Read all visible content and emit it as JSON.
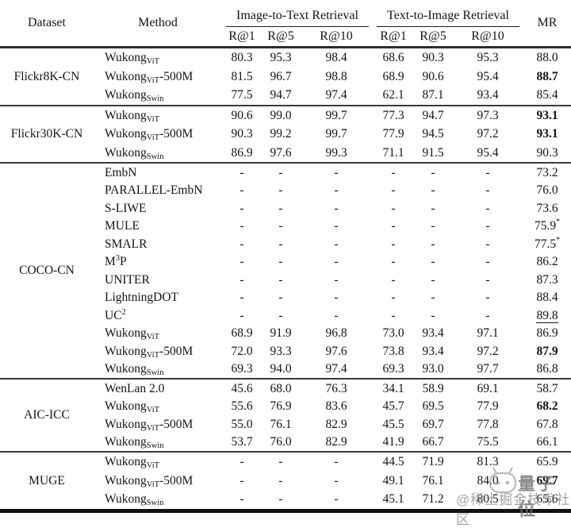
{
  "table": {
    "header": {
      "dataset": "Dataset",
      "method": "Method",
      "group1": "Image-to-Text Retrieval",
      "group2": "Text-to-Image Retrieval",
      "mr": "MR",
      "subcols": [
        "R@1",
        "R@5",
        "R@10",
        "R@1",
        "R@5",
        "R@10"
      ]
    },
    "groups": [
      {
        "dataset": "Flickr8K-CN",
        "tall": true,
        "rows": [
          {
            "method": {
              "base": "Wukong",
              "sub": "ViT"
            },
            "cells": [
              "80.3",
              "95.3",
              "98.4",
              "68.6",
              "90.3",
              "95.3"
            ],
            "mr": {
              "value": "88.0"
            }
          },
          {
            "method": {
              "base": "Wukong",
              "sub": "ViT",
              "suffix": "-500M"
            },
            "cells": [
              "81.5",
              "96.7",
              "98.8",
              "68.9",
              "90.6",
              "95.4"
            ],
            "mr": {
              "value": "88.7",
              "bold": true
            }
          },
          {
            "method": {
              "base": "Wukong",
              "sub": "Swin"
            },
            "cells": [
              "77.5",
              "94.7",
              "97.4",
              "62.1",
              "87.1",
              "93.4"
            ],
            "mr": {
              "value": "85.4"
            }
          }
        ]
      },
      {
        "dataset": "Flickr30K-CN",
        "tall": true,
        "rows": [
          {
            "method": {
              "base": "Wukong",
              "sub": "ViT"
            },
            "cells": [
              "90.6",
              "99.0",
              "99.7",
              "77.3",
              "94.7",
              "97.3"
            ],
            "mr": {
              "value": "93.1",
              "bold": true
            }
          },
          {
            "method": {
              "base": "Wukong",
              "sub": "ViT",
              "suffix": "-500M"
            },
            "cells": [
              "90.3",
              "99.2",
              "99.7",
              "77.9",
              "94.5",
              "97.2"
            ],
            "mr": {
              "value": "93.1",
              "bold": true
            }
          },
          {
            "method": {
              "base": "Wukong",
              "sub": "Swin"
            },
            "cells": [
              "86.9",
              "97.6",
              "99.3",
              "71.1",
              "91.5",
              "95.4"
            ],
            "mr": {
              "value": "90.3"
            }
          }
        ]
      },
      {
        "dataset": "COCO-CN",
        "tall": false,
        "rows": [
          {
            "method": {
              "base": "EmbN"
            },
            "cells": [
              "-",
              "-",
              "-",
              "-",
              "-",
              "-"
            ],
            "mr": {
              "value": "73.2"
            }
          },
          {
            "method": {
              "base": "PARALLEL-EmbN"
            },
            "cells": [
              "-",
              "-",
              "-",
              "-",
              "-",
              "-"
            ],
            "mr": {
              "value": "76.0"
            }
          },
          {
            "method": {
              "base": "S-LIWE"
            },
            "cells": [
              "-",
              "-",
              "-",
              "-",
              "-",
              "-"
            ],
            "mr": {
              "value": "73.6"
            }
          },
          {
            "method": {
              "base": "MULE"
            },
            "cells": [
              "-",
              "-",
              "-",
              "-",
              "-",
              "-"
            ],
            "mr": {
              "value": "75.9",
              "star": true
            }
          },
          {
            "method": {
              "base": "SMALR"
            },
            "cells": [
              "-",
              "-",
              "-",
              "-",
              "-",
              "-"
            ],
            "mr": {
              "value": "77.5",
              "star": true
            }
          },
          {
            "method": {
              "base": "M",
              "sup": "3",
              "suffix": "P"
            },
            "cells": [
              "-",
              "-",
              "-",
              "-",
              "-",
              "-"
            ],
            "mr": {
              "value": "86.2"
            }
          },
          {
            "method": {
              "base": "UNITER"
            },
            "cells": [
              "-",
              "-",
              "-",
              "-",
              "-",
              "-"
            ],
            "mr": {
              "value": "87.3"
            }
          },
          {
            "method": {
              "base": "LightningDOT"
            },
            "cells": [
              "-",
              "-",
              "-",
              "-",
              "-",
              "-"
            ],
            "mr": {
              "value": "88.4"
            }
          },
          {
            "method": {
              "base": "UC",
              "sup": "2"
            },
            "cells": [
              "-",
              "-",
              "-",
              "-",
              "-",
              "-"
            ],
            "mr": {
              "value": "89.8",
              "underline": true
            }
          },
          {
            "method": {
              "base": "Wukong",
              "sub": "ViT"
            },
            "cells": [
              "68.9",
              "91.9",
              "96.8",
              "73.0",
              "93.4",
              "97.1"
            ],
            "mr": {
              "value": "86.9"
            }
          },
          {
            "method": {
              "base": "Wukong",
              "sub": "ViT",
              "suffix": "-500M"
            },
            "cells": [
              "72.0",
              "93.3",
              "97.6",
              "73.8",
              "93.4",
              "97.2"
            ],
            "mr": {
              "value": "87.9",
              "bold": true
            }
          },
          {
            "method": {
              "base": "Wukong",
              "sub": "Swin"
            },
            "cells": [
              "69.3",
              "94.0",
              "97.4",
              "69.3",
              "93.0",
              "97.7"
            ],
            "mr": {
              "value": "86.8"
            }
          }
        ]
      },
      {
        "dataset": "AIC-ICC",
        "tall": false,
        "rows": [
          {
            "method": {
              "base": "WenLan 2.0"
            },
            "cells": [
              "45.6",
              "68.0",
              "76.3",
              "34.1",
              "58.9",
              "69.1"
            ],
            "mr": {
              "value": "58.7"
            }
          },
          {
            "method": {
              "base": "Wukong",
              "sub": "ViT"
            },
            "cells": [
              "55.6",
              "76.9",
              "83.6",
              "45.7",
              "69.5",
              "77.9"
            ],
            "mr": {
              "value": "68.2",
              "bold": true
            }
          },
          {
            "method": {
              "base": "Wukong",
              "sub": "ViT",
              "suffix": "-500M"
            },
            "cells": [
              "55.0",
              "76.1",
              "82.9",
              "45.5",
              "69.7",
              "77.8"
            ],
            "mr": {
              "value": "67.8"
            }
          },
          {
            "method": {
              "base": "Wukong",
              "sub": "Swin"
            },
            "cells": [
              "53.7",
              "76.0",
              "82.9",
              "41.9",
              "66.7",
              "75.5"
            ],
            "mr": {
              "value": "66.1"
            }
          }
        ]
      },
      {
        "dataset": "MUGE",
        "tall": true,
        "rows": [
          {
            "method": {
              "base": "Wukong",
              "sub": "ViT"
            },
            "cells": [
              "-",
              "-",
              "-",
              "44.5",
              "71.9",
              "81.3"
            ],
            "mr": {
              "value": "65.9"
            }
          },
          {
            "method": {
              "base": "Wukong",
              "sub": "ViT",
              "suffix": "-500M"
            },
            "cells": [
              "-",
              "-",
              "-",
              "49.1",
              "76.1",
              "84.0"
            ],
            "mr": {
              "value": "69.7",
              "bold": true
            }
          },
          {
            "method": {
              "base": "Wukong",
              "sub": "Swin"
            },
            "cells": [
              "-",
              "-",
              "-",
              "45.1",
              "71.2",
              "80.5"
            ],
            "mr": {
              "value": "65.6"
            }
          }
        ]
      }
    ]
  },
  "watermark": {
    "brand": "量子位",
    "handle": "@稀土掘金技术社区",
    "logo": "qbitai-logo"
  },
  "colors": {
    "text": "#141414",
    "rule_heavy": "#111111",
    "rule_group": "#3a3a3a",
    "watermark_gray": "#8e8e8e"
  }
}
